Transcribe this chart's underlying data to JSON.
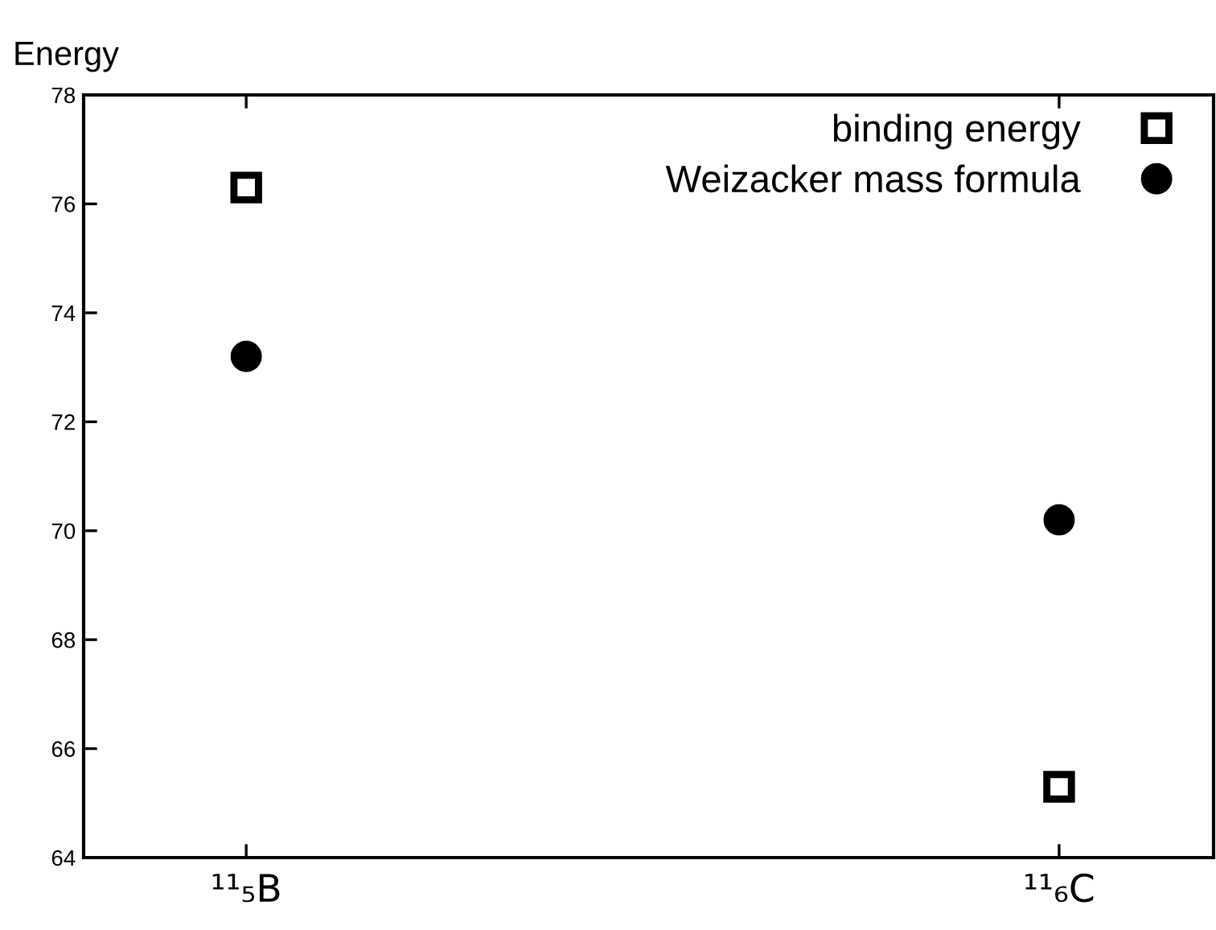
{
  "chart_data": {
    "type": "scatter",
    "ylabel": "Energy",
    "categories": [
      "¹¹₅B",
      "¹¹₆C"
    ],
    "series": [
      {
        "name": "binding energy",
        "color": "#000000",
        "marker": "square",
        "values": [
          76.3,
          65.3
        ]
      },
      {
        "name": "Weizacker mass formula",
        "color": "#000000",
        "marker": "circle",
        "values": [
          73.2,
          70.2
        ]
      }
    ],
    "ylim": [
      64,
      78
    ],
    "yticks": [
      64,
      66,
      68,
      70,
      72,
      74,
      76,
      78
    ],
    "grid": false,
    "legend": "top right"
  }
}
